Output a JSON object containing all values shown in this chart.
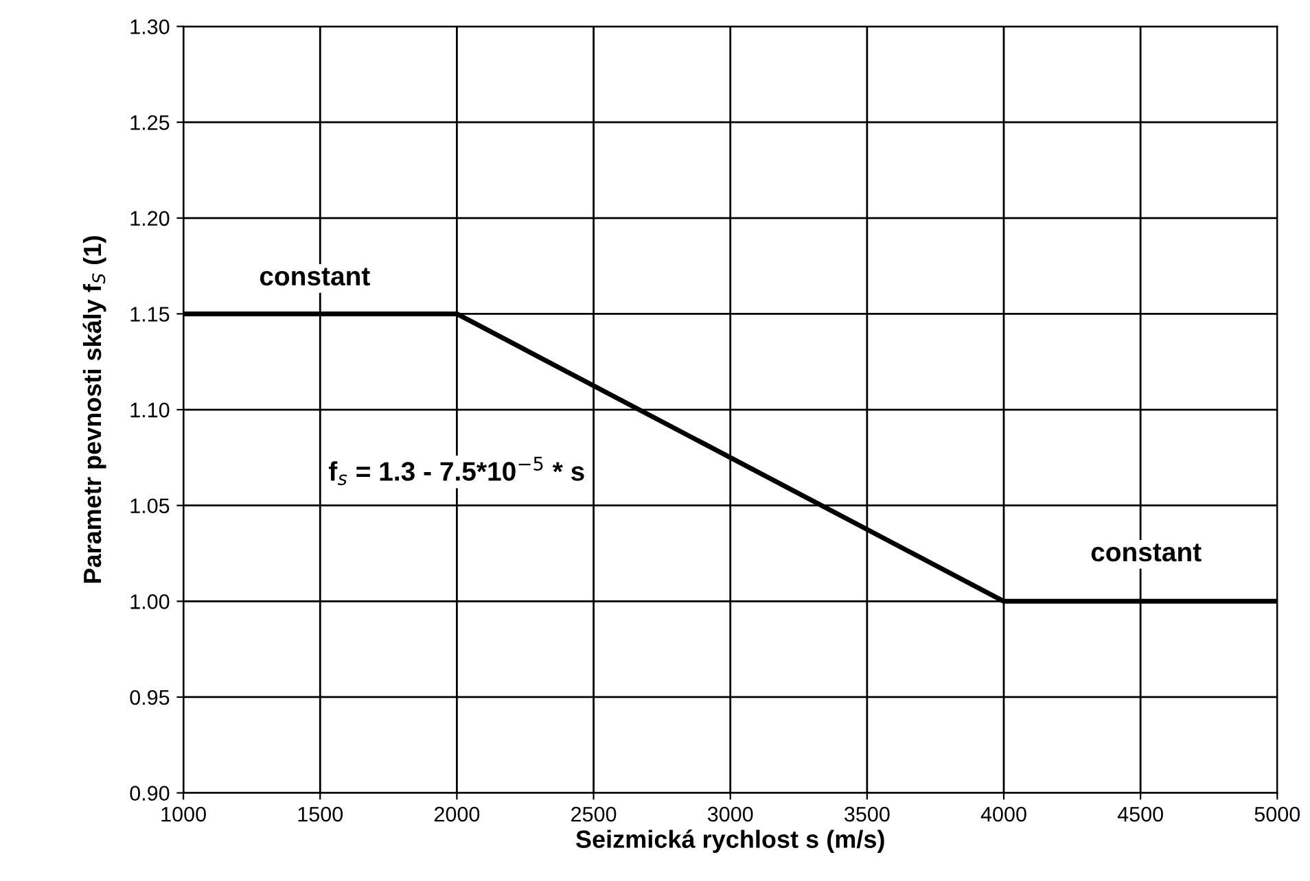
{
  "chart_data": {
    "type": "line",
    "xlabel": "Seizmická rychlost s (m/s)",
    "ylabel": "Parametr pevnosti skály f$_{S}$ (1)",
    "series": [
      {
        "color": "#000000",
        "x": [
          1000,
          2000,
          4000,
          5000
        ],
        "values": [
          1.15,
          1.15,
          1.0,
          1.0
        ]
      }
    ],
    "xlim": [
      1000,
      5000
    ],
    "xticks": [
      1000,
      1500,
      2000,
      2500,
      3000,
      3500,
      4000,
      4500,
      5000
    ],
    "ylim": [
      0.9,
      1.3
    ],
    "yticks": [
      {
        "value": 0.9,
        "label": "0.90"
      },
      {
        "value": 0.95,
        "label": "0.95"
      },
      {
        "value": 1.0,
        "label": "1.00"
      },
      {
        "value": 1.05,
        "label": "1.05"
      },
      {
        "value": 1.1,
        "label": "1.10"
      },
      {
        "value": 1.15,
        "label": "1.15"
      },
      {
        "value": 1.2,
        "label": "1.20"
      },
      {
        "value": 1.25,
        "label": "1.25"
      },
      {
        "value": 1.3,
        "label": "1.30"
      }
    ],
    "grid": true,
    "marker": "none",
    "line_style": "solid",
    "annotations": [
      "constant",
      "f$_{s}$ = 1.3 - 7.5*10$^{−5}$ * s",
      "constant"
    ]
  }
}
